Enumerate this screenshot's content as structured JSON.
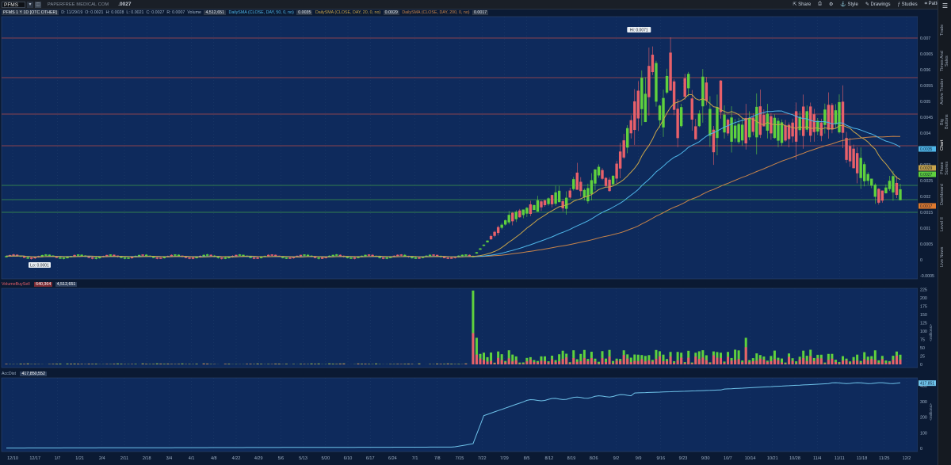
{
  "toolbar": {
    "symbol": "PFMS",
    "company": "PAPERFREE MEDICAL COM",
    "last_price": ".0027",
    "share": "Share",
    "style": "Style",
    "drawings": "Drawings",
    "studies": "Studies",
    "patterns": "Patterns"
  },
  "info": {
    "chart_label": "PFMS 1 Y 1D [OTC OTHER]",
    "date": "D: 11/29/19",
    "open": "O: 0.0021",
    "high": "H: 0.0028",
    "low": "L: 0.0021",
    "close": "C: 0.0027",
    "range": "R: 0.0007",
    "volume_label": "Volume",
    "volume_value": "4,512,651",
    "sma50_label": "DailySMA (CLOSE, DAY, 50, 0, no)",
    "sma50_value": "0.0035",
    "sma20_label": "DailySMA (CLOSE, DAY, 20, 0, no)",
    "sma20_value": "0.0029",
    "sma200_label": "DailySMA (CLOSE, DAY, 200, 0, no)",
    "sma200_value": "0.0017"
  },
  "volume_panel": {
    "label": "VolumeBuySell",
    "value1": "640,364",
    "value2": "4,512,651",
    "axis_title": "<millions>"
  },
  "accdist_panel": {
    "label": "AccDist",
    "value": "417,850,552",
    "axis_title": "<millions>",
    "tag": "417.851"
  },
  "sidebar_tabs": [
    "Trade",
    "Times And Sales",
    "Active Trader",
    "Big Buttons",
    "Chart",
    "Phase Scores",
    "Dashboard",
    "Level II",
    "Live News"
  ],
  "chart_data": {
    "type": "candlestick",
    "y_ticks": [
      "0.007",
      "0.0065",
      "0.006",
      "0.0055",
      "0.005",
      "0.0045",
      "0.004",
      "0.0035",
      "0.003",
      "0.0025",
      "0.002",
      "0.0015",
      "0.001",
      "0.0005",
      "0",
      "-0.0005"
    ],
    "x_ticks": [
      "12/10",
      "12/17",
      "1/7",
      "1/21",
      "2/4",
      "2/11",
      "2/18",
      "3/4",
      "4/1",
      "4/8",
      "4/22",
      "4/29",
      "5/6",
      "5/13",
      "5/20",
      "6/10",
      "6/17",
      "6/24",
      "7/1",
      "7/8",
      "7/15",
      "7/22",
      "7/29",
      "8/5",
      "8/12",
      "8/19",
      "8/26",
      "9/2",
      "9/9",
      "9/16",
      "9/23",
      "9/30",
      "10/7",
      "10/14",
      "10/21",
      "10/28",
      "11/4",
      "11/11",
      "11/18",
      "11/25",
      "12/2"
    ],
    "annotations": {
      "high": "Hi: 0.0071",
      "low": "Lo: 0.0001"
    },
    "price_tags": [
      "0.0035",
      "0.0029",
      "0.0027",
      "0.0017"
    ],
    "volume_ticks": [
      "225",
      "200",
      "175",
      "150",
      "125",
      "100",
      "75",
      "50",
      "25",
      "0"
    ],
    "accdist_ticks": [
      "400",
      "300",
      "200",
      "100",
      "0"
    ],
    "colors": {
      "up": "#5fd13d",
      "down": "#e8606a",
      "sma50": "#4fb6e8",
      "sma20": "#c8a44a",
      "sma200": "#c8844a",
      "hline_red": "#b34a4a",
      "hline_green": "#3e9a4a",
      "accdist": "#6fc3ea"
    }
  }
}
